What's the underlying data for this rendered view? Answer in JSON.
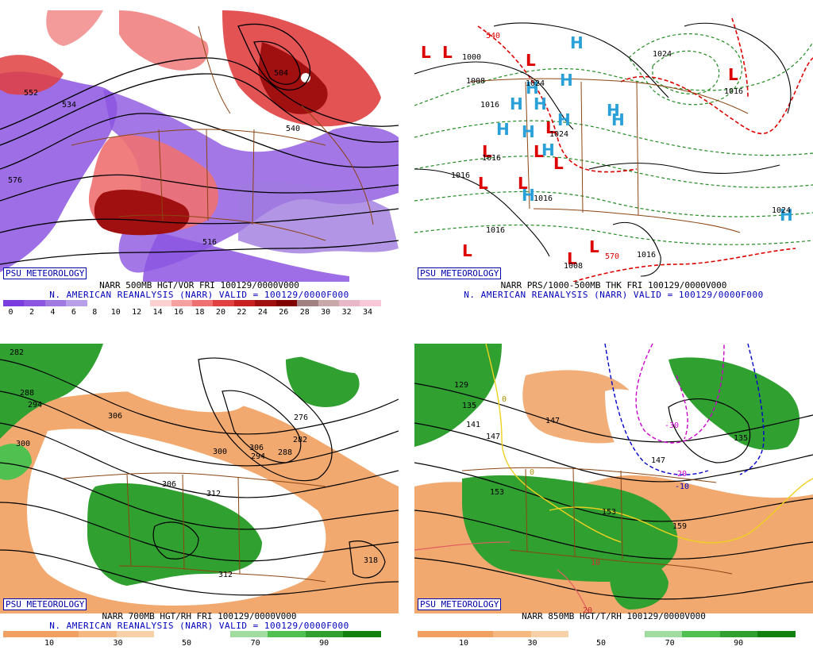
{
  "panels": [
    {
      "id": "vor500",
      "badge": "PSU METEOROLOGY",
      "title": "NARR 500MB HGT/VOR FRI 100129/0000V000",
      "subtitle": "N. AMERICAN REANALYSIS (NARR) VALID = 100129/0000F000",
      "colorbar_colors": [
        "#7a3ee0",
        "#8c55e0",
        "#a07ae0",
        "#b8a0e8",
        "#ffffff",
        "#ffffff",
        "#ffffff",
        "#fbd0d0",
        "#f5a0a0",
        "#ee7070",
        "#e04040",
        "#c82020",
        "#a01010",
        "#800000",
        "#a08080",
        "#c8a8a8",
        "#e8b8c8",
        "#f8c8d8"
      ],
      "ticks": [
        "0",
        "2",
        "4",
        "6",
        "8",
        "10",
        "12",
        "14",
        "16",
        "18",
        "20",
        "22",
        "24",
        "26",
        "28",
        "30",
        "32",
        "34"
      ],
      "contour_labels": [
        "552",
        "534",
        "504",
        "540",
        "516",
        "576",
        "540"
      ]
    },
    {
      "id": "prs",
      "badge": "PSU METEOROLOGY",
      "title": "NARR PRS/1000-500MB THK FRI 100129/0000V000",
      "subtitle": "N. AMERICAN REANALYSIS (NARR) VALID = 100129/0000F000",
      "isobar_labels": [
        "1000",
        "1008",
        "1024",
        "1016",
        "1024",
        "1024",
        "1016",
        "1016",
        "1016",
        "1016",
        "1008",
        "1016",
        "1016",
        "1024",
        "540",
        "570"
      ],
      "highs": [
        "H",
        "H",
        "H",
        "H",
        "H",
        "H",
        "H",
        "H",
        "H",
        "H",
        "H",
        "H",
        "H"
      ],
      "lows": [
        "L",
        "L",
        "L",
        "L",
        "L",
        "L",
        "L",
        "L",
        "L",
        "L",
        "L",
        "L",
        "L"
      ]
    },
    {
      "id": "rh700",
      "badge": "PSU METEOROLOGY",
      "title": "NARR 700MB HGT/RH FRI 100129/0000V000",
      "subtitle": "N. AMERICAN REANALYSIS (NARR) VALID = 100129/0000F000",
      "colorbar_colors": [
        "#f0a060",
        "#f0a060",
        "#f5b880",
        "#f8d0a8",
        "#ffffff",
        "#ffffff",
        "#a0dca0",
        "#50c050",
        "#30a030",
        "#108010"
      ],
      "ticks": [
        "10",
        "30",
        "50",
        "70",
        "90"
      ],
      "contour_labels": [
        "282",
        "288",
        "294",
        "300",
        "306",
        "300",
        "306",
        "312",
        "306",
        "288",
        "282",
        "276",
        "294",
        "312",
        "318"
      ]
    },
    {
      "id": "rh850",
      "badge": "PSU METEOROLOGY",
      "title": "NARR 850MB HGT/T/RH 100129/0000V000",
      "subtitle": "",
      "colorbar_colors": [
        "#f0a060",
        "#f0a060",
        "#f5b880",
        "#f8d0a8",
        "#ffffff",
        "#ffffff",
        "#a0dca0",
        "#50c050",
        "#30a030",
        "#108010"
      ],
      "ticks": [
        "10",
        "30",
        "50",
        "70",
        "90"
      ],
      "contour_labels": [
        "129",
        "135",
        "141",
        "147",
        "147",
        "153",
        "153",
        "159",
        "147",
        "-30",
        "-20",
        "-10",
        "0",
        "0",
        "10",
        "20",
        "135"
      ]
    }
  ]
}
